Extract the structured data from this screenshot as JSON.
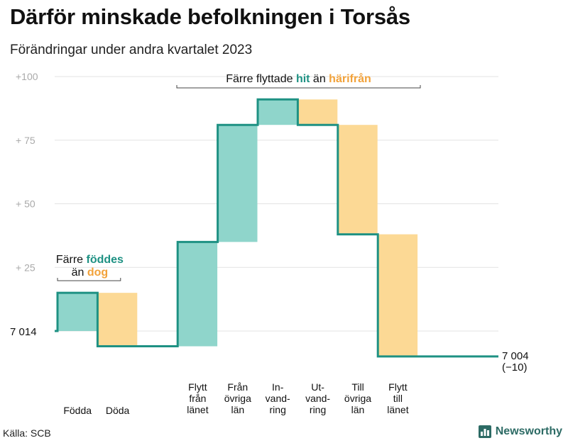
{
  "title": "Därför minskade befolkningen i Torsås",
  "subtitle": "Förändringar under andra kvartalet 2023",
  "source": "Källa: SCB",
  "brand": "Newsworthy",
  "colors": {
    "increase": "#8fd5cb",
    "decrease": "#fcd995",
    "line": "#1e9183",
    "grid": "#e3e3e3",
    "tick": "#aaaaaa",
    "highlight_teal": "#1e9183",
    "highlight_orange": "#f2a23a"
  },
  "chart_data": {
    "type": "waterfall",
    "start": {
      "label": "7 014",
      "value": 7014
    },
    "end": {
      "label": "7 004",
      "change_label": "(−10)",
      "value": 7004
    },
    "y_ticks": [
      {
        "label": "+100",
        "offset": 100
      },
      {
        "label": "+  75",
        "offset": 75
      },
      {
        "label": "+  50",
        "offset": 50
      },
      {
        "label": "+  25",
        "offset": 25
      }
    ],
    "ylim_offset": [
      -12,
      100
    ],
    "steps": [
      {
        "label": [
          "Födda"
        ],
        "delta": 15
      },
      {
        "label": [
          "Döda"
        ],
        "delta": -21
      },
      {
        "label": [
          ""
        ],
        "delta": 0
      },
      {
        "label": [
          "Flytt",
          "från",
          "länet"
        ],
        "delta": 41
      },
      {
        "label": [
          "Från",
          "övriga",
          "län"
        ],
        "delta": 46
      },
      {
        "label": [
          "In-",
          "vand-",
          "ring"
        ],
        "delta": 10
      },
      {
        "label": [
          "Ut-",
          "vand-",
          "ring"
        ],
        "delta": -10
      },
      {
        "label": [
          "Till",
          "övriga",
          "län"
        ],
        "delta": -43
      },
      {
        "label": [
          "Flytt",
          "till",
          "länet"
        ],
        "delta": -48
      }
    ],
    "annotations": [
      {
        "line1_prefix": "Färre ",
        "line1_highlight": "föddes",
        "line2_prefix": "än ",
        "line2_highlight": "dog",
        "bracket_steps": [
          0,
          1
        ]
      },
      {
        "line1_prefix": "Färre flyttade ",
        "line1_highlight": "hit",
        "line1_middle": " än ",
        "line1_highlight2": "härifrån",
        "bracket_steps": [
          3,
          8
        ]
      }
    ]
  }
}
